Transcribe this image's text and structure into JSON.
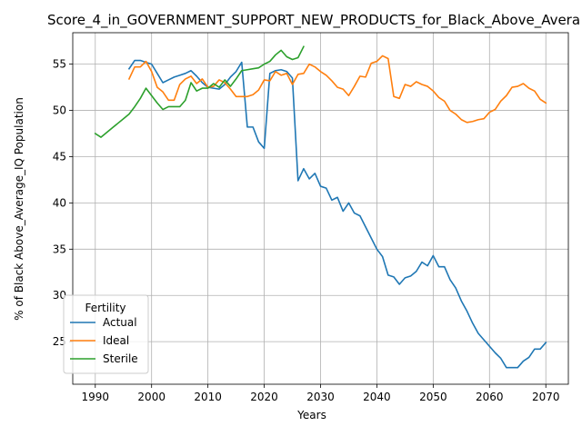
{
  "chart_data": {
    "type": "line",
    "title": "Score_4_in_GOVERNMENT_SUPPORT_NEW_PRODUCTS_for_Black_Above_Avera",
    "xlabel": "Years",
    "ylabel": "% of Black Above_Average_IQ Population",
    "xlim": [
      1986,
      2074
    ],
    "ylim": [
      20.4,
      58.4
    ],
    "xticks": [
      1990,
      2000,
      2010,
      2020,
      2030,
      2040,
      2050,
      2060,
      2070
    ],
    "yticks": [
      25,
      30,
      35,
      40,
      45,
      50,
      55
    ],
    "grid": true,
    "legend": {
      "title": "Fertility",
      "location": "lower-left"
    },
    "series": [
      {
        "name": "Actual",
        "color": "#1f77b4",
        "x": [
          1996,
          1997,
          1998,
          1999,
          2000,
          2001,
          2002,
          2003,
          2004,
          2005,
          2006,
          2007,
          2008,
          2009,
          2010,
          2011,
          2012,
          2013,
          2014,
          2015,
          2016,
          2017,
          2018,
          2019,
          2020,
          2021,
          2022,
          2023,
          2024,
          2025,
          2026,
          2027,
          2028,
          2029,
          2030,
          2031,
          2032,
          2033,
          2034,
          2035,
          2036,
          2037,
          2038,
          2039,
          2040,
          2041,
          2042,
          2043,
          2044,
          2045,
          2046,
          2047,
          2048,
          2049,
          2050,
          2051,
          2052,
          2053,
          2054,
          2055,
          2056,
          2057,
          2058,
          2059,
          2060,
          2061,
          2062,
          2063,
          2064,
          2065,
          2066,
          2067,
          2068,
          2069,
          2070
        ],
        "y": [
          54.5,
          55.4,
          55.4,
          55.2,
          55.0,
          54.0,
          53.0,
          53.3,
          53.6,
          53.8,
          54.0,
          54.3,
          53.7,
          53.0,
          52.5,
          52.4,
          52.3,
          52.8,
          53.6,
          54.2,
          55.2,
          48.2,
          48.2,
          46.6,
          45.9,
          54.0,
          54.3,
          54.4,
          54.2,
          53.5,
          42.4,
          43.7,
          42.6,
          43.2,
          41.8,
          41.6,
          40.3,
          40.6,
          39.1,
          40.0,
          38.9,
          38.6,
          37.4,
          36.2,
          35.0,
          34.2,
          32.2,
          32.0,
          31.2,
          31.9,
          32.1,
          32.6,
          33.6,
          33.2,
          34.3,
          33.1,
          33.1,
          31.7,
          30.8,
          29.4,
          28.3,
          27.0,
          25.9,
          25.2,
          24.5,
          23.8,
          23.2,
          22.2,
          22.2,
          22.2,
          22.9,
          23.3,
          24.2,
          24.2,
          24.9
        ]
      },
      {
        "name": "Ideal",
        "color": "#ff7f0e",
        "x": [
          1996,
          1997,
          1998,
          1999,
          2000,
          2001,
          2002,
          2003,
          2004,
          2005,
          2006,
          2007,
          2008,
          2009,
          2010,
          2011,
          2012,
          2013,
          2014,
          2015,
          2016,
          2017,
          2018,
          2019,
          2020,
          2021,
          2022,
          2023,
          2024,
          2025,
          2026,
          2027,
          2028,
          2029,
          2030,
          2031,
          2032,
          2033,
          2034,
          2035,
          2036,
          2037,
          2038,
          2039,
          2040,
          2041,
          2042,
          2043,
          2044,
          2045,
          2046,
          2047,
          2048,
          2049,
          2050,
          2051,
          2052,
          2053,
          2054,
          2055,
          2056,
          2057,
          2058,
          2059,
          2060,
          2061,
          2062,
          2063,
          2064,
          2065,
          2066,
          2067,
          2068,
          2069,
          2070
        ],
        "y": [
          53.4,
          54.7,
          54.7,
          55.3,
          54.2,
          52.5,
          52.0,
          51.1,
          51.1,
          52.8,
          53.4,
          53.7,
          52.9,
          53.4,
          52.5,
          52.6,
          53.3,
          53.0,
          52.3,
          51.5,
          51.5,
          51.5,
          51.7,
          52.2,
          53.3,
          53.2,
          54.2,
          53.8,
          54.0,
          52.8,
          53.9,
          54.0,
          55.0,
          54.7,
          54.2,
          53.8,
          53.2,
          52.5,
          52.3,
          51.6,
          52.6,
          53.7,
          53.6,
          55.1,
          55.3,
          55.9,
          55.6,
          51.5,
          51.3,
          52.8,
          52.6,
          53.1,
          52.8,
          52.6,
          52.1,
          51.4,
          51.0,
          50.0,
          49.6,
          49.0,
          48.7,
          48.8,
          49.0,
          49.1,
          49.8,
          50.1,
          51.0,
          51.6,
          52.5,
          52.6,
          52.9,
          52.4,
          52.1,
          51.2,
          50.8
        ]
      },
      {
        "name": "Sterile",
        "color": "#2ca02c",
        "x": [
          1990,
          1991,
          1992,
          1993,
          1994,
          1995,
          1996,
          1997,
          1998,
          1999,
          2000,
          2001,
          2002,
          2003,
          2004,
          2005,
          2006,
          2007,
          2008,
          2009,
          2010,
          2011,
          2012,
          2013,
          2014,
          2015,
          2016,
          2017,
          2018,
          2019,
          2020,
          2021,
          2022,
          2023,
          2024,
          2025,
          2026,
          2027
        ],
        "y": [
          47.5,
          47.1,
          47.6,
          48.1,
          48.6,
          49.1,
          49.6,
          50.4,
          51.3,
          52.4,
          51.6,
          50.8,
          50.1,
          50.4,
          50.4,
          50.4,
          51.1,
          53.0,
          52.1,
          52.4,
          52.4,
          52.9,
          52.5,
          53.3,
          52.6,
          53.4,
          54.3,
          54.4,
          54.5,
          54.6,
          55.0,
          55.3,
          56.0,
          56.5,
          55.8,
          55.5,
          55.7,
          56.9
        ]
      }
    ]
  }
}
